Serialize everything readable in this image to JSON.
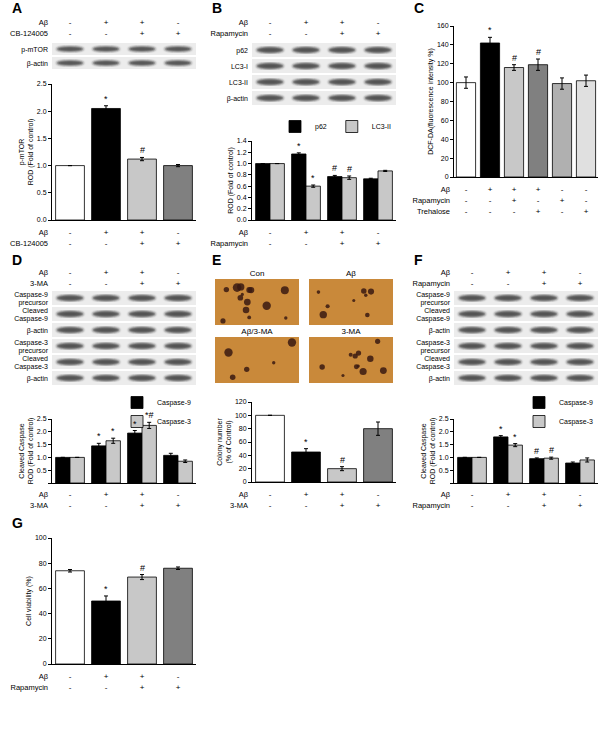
{
  "panels": [
    {
      "label": "A",
      "conditions": [
        {
          "name": "Aβ",
          "signs": [
            "-",
            "+",
            "+",
            "-"
          ]
        },
        {
          "name": "CB-124005",
          "signs": [
            "-",
            "-",
            "+",
            "+"
          ]
        }
      ],
      "blots": [
        "p-mTOR",
        "β-actin"
      ]
    },
    {
      "label": "B",
      "conditions": [
        {
          "name": "Aβ",
          "signs": [
            "-",
            "+",
            "+",
            "-"
          ]
        },
        {
          "name": "Rapamycin",
          "signs": [
            "-",
            "-",
            "+",
            "+"
          ]
        }
      ],
      "blots": [
        "p62",
        "LC3-I",
        "LC3-II",
        "β-actin"
      ]
    },
    {
      "label": "C",
      "conditions": [
        {
          "name": "Aβ",
          "signs": [
            "-",
            "+",
            "+",
            "+",
            "-",
            "-"
          ]
        },
        {
          "name": "Rapamycin",
          "signs": [
            "-",
            "-",
            "+",
            "-",
            "+",
            "-"
          ]
        },
        {
          "name": "Trehalose",
          "signs": [
            "-",
            "-",
            "-",
            "+",
            "-",
            "+"
          ]
        }
      ]
    },
    {
      "label": "D",
      "conditions": [
        {
          "name": "Aβ",
          "signs": [
            "-",
            "+",
            "+",
            "-"
          ]
        },
        {
          "name": "3-MA",
          "signs": [
            "-",
            "-",
            "+",
            "+"
          ]
        }
      ],
      "blots": [
        "Caspase-9\nprecursor",
        "Cleaved\nCaspase-9",
        "β-actin",
        "Caspase-3\nprecursor",
        "Cleaved\nCaspase-3",
        "β-actin"
      ]
    },
    {
      "label": "E",
      "conditions": [
        {
          "name": "Aβ",
          "signs": [
            "-",
            "+",
            "+",
            "-"
          ]
        },
        {
          "name": "3-MA",
          "signs": [
            "-",
            "-",
            "+",
            "+"
          ]
        }
      ],
      "images": [
        "Con",
        "Aβ",
        "Aβ/3-MA",
        "3-MA"
      ]
    },
    {
      "label": "F",
      "conditions": [
        {
          "name": "Aβ",
          "signs": [
            "-",
            "+",
            "+",
            "-"
          ]
        },
        {
          "name": "Rapamycin",
          "signs": [
            "-",
            "-",
            "+",
            "+"
          ]
        }
      ],
      "blots": [
        "Caspase-9\nprecursor",
        "Cleaved\nCaspase-9",
        "β-actin",
        "Caspase-3\nprecursor",
        "Cleaved\nCaspase-3",
        "β-actin"
      ]
    },
    {
      "label": "G",
      "conditions": [
        {
          "name": "Aβ",
          "signs": [
            "-",
            "+",
            "+",
            "-"
          ]
        },
        {
          "name": "Rapamycin",
          "signs": [
            "-",
            "-",
            "+",
            "+"
          ]
        }
      ]
    }
  ],
  "chart_data": [
    {
      "type": "bar",
      "ylabel": "p-mTOR\nROD (Fold of control)",
      "categories": [
        null,
        null,
        null,
        null
      ],
      "values": [
        1.0,
        2.05,
        1.12,
        1.0
      ],
      "errors": [
        0,
        0.05,
        0.03,
        0.02
      ],
      "colors": [
        "#ffffff",
        "#000000",
        "#c8c8c8",
        "#808080"
      ],
      "ylim": [
        0,
        2.5
      ],
      "yticks": [
        {
          "value": 0,
          "label": "0.0"
        },
        0.5,
        {
          "value": 1,
          "label": "1.0"
        },
        1.5,
        {
          "value": 2,
          "label": "2.0"
        },
        2.5
      ],
      "grid": false,
      "tick_labels": "y",
      "annotations": [
        {
          "index": 1,
          "text": "*"
        },
        {
          "index": 2,
          "text": "#"
        }
      ]
    },
    {
      "type": "bar",
      "ylabel": "ROD (Fold of control)",
      "categories": [
        null,
        null,
        null,
        null
      ],
      "series": [
        {
          "name": "p62",
          "color": "#000000",
          "values": [
            1.0,
            1.17,
            0.77,
            0.73
          ],
          "errors": [
            0,
            0.02,
            0.02,
            0.01
          ]
        },
        {
          "name": "LC3-II",
          "color": "#c8c8c8",
          "values": [
            1.0,
            0.6,
            0.75,
            0.87
          ],
          "errors": [
            0,
            0.02,
            0.03,
            0.01
          ]
        }
      ],
      "ylim": [
        0,
        1.4
      ],
      "yticks": [
        {
          "value": 0,
          "label": "0.0"
        },
        0.2,
        0.4,
        0.6,
        0.8,
        {
          "value": 1,
          "label": "1.0"
        },
        1.2,
        1.4
      ],
      "grid": false,
      "tick_labels": "y",
      "legend": "top right",
      "annotations": [
        {
          "index": 1,
          "series": "p62",
          "text": "*"
        },
        {
          "index": 1,
          "series": "LC3-II",
          "text": "*"
        },
        {
          "index": 2,
          "series": "p62",
          "text": "#"
        },
        {
          "index": 2,
          "series": "LC3-II",
          "text": "#"
        }
      ]
    },
    {
      "type": "bar",
      "ylabel": "DCF-DA(fluorescence intensity %)",
      "categories": [
        null,
        null,
        null,
        null,
        null,
        null
      ],
      "values": [
        100,
        142,
        116,
        119,
        99,
        102
      ],
      "errors": [
        6,
        6,
        3,
        6,
        6,
        6
      ],
      "colors": [
        "#ffffff",
        "#000000",
        "#c8c8c8",
        "#808080",
        "#b0b0b0",
        "#e0e0e0"
      ],
      "ylim": [
        0,
        160
      ],
      "yticks": [
        0,
        20,
        40,
        60,
        80,
        100,
        120,
        140,
        160
      ],
      "grid": false,
      "tick_labels": "y",
      "annotations": [
        {
          "index": 1,
          "text": "*"
        },
        {
          "index": 2,
          "text": "#"
        },
        {
          "index": 3,
          "text": "#"
        }
      ]
    },
    {
      "type": "bar",
      "ylabel": "Cleaved Caspase\nROD (Fold of control)",
      "categories": [
        null,
        null,
        null,
        null
      ],
      "series": [
        {
          "name": "Caspase-9",
          "color": "#000000",
          "values": [
            1.0,
            1.45,
            1.95,
            1.08
          ],
          "errors": [
            0,
            0.1,
            0.1,
            0.08
          ]
        },
        {
          "name": "Caspase-3",
          "color": "#c8c8c8",
          "values": [
            1.0,
            1.65,
            2.25,
            0.85
          ],
          "errors": [
            0,
            0.1,
            0.12,
            0.05
          ]
        }
      ],
      "ylim": [
        0,
        2.5
      ],
      "yticks": [
        {
          "value": 0,
          "label": "0.0"
        },
        0.5,
        {
          "value": 1,
          "label": "1.0"
        },
        1.5,
        {
          "value": 2,
          "label": "2.0"
        },
        2.5
      ],
      "grid": false,
      "tick_labels": "y",
      "legend": "top right",
      "annotations": [
        {
          "index": 1,
          "series": "Caspase-9",
          "text": "*"
        },
        {
          "index": 1,
          "series": "Caspase-3",
          "text": "*"
        },
        {
          "index": 2,
          "series": "Caspase-9",
          "text": "*"
        },
        {
          "index": 2,
          "series": "Caspase-3",
          "text": "*#"
        }
      ]
    },
    {
      "type": "bar",
      "ylabel": "Colony number\n(% of Control)",
      "categories": [
        null,
        null,
        null,
        null
      ],
      "values": [
        100,
        45,
        20,
        80
      ],
      "errors": [
        0,
        5,
        3,
        10
      ],
      "colors": [
        "#ffffff",
        "#000000",
        "#c8c8c8",
        "#808080"
      ],
      "ylim": [
        0,
        120
      ],
      "yticks": [
        0,
        20,
        40,
        60,
        80,
        100,
        120
      ],
      "grid": false,
      "tick_labels": "y",
      "annotations": [
        {
          "index": 1,
          "text": "*"
        },
        {
          "index": 2,
          "text": "#"
        }
      ]
    },
    {
      "type": "bar",
      "ylabel": "Cleaved Caspase\nROD (Fold of control)",
      "categories": [
        null,
        null,
        null,
        null
      ],
      "series": [
        {
          "name": "Caspase-9",
          "color": "#000000",
          "values": [
            1.0,
            1.8,
            0.95,
            0.78
          ],
          "errors": [
            0,
            0.05,
            0.03,
            0.04
          ]
        },
        {
          "name": "Caspase-3",
          "color": "#c8c8c8",
          "values": [
            1.0,
            1.48,
            0.97,
            0.9
          ],
          "errors": [
            0,
            0.06,
            0.04,
            0.08
          ]
        }
      ],
      "ylim": [
        0,
        2.5
      ],
      "yticks": [
        {
          "value": 0,
          "label": "0.0"
        },
        0.5,
        {
          "value": 1,
          "label": "1.0"
        },
        1.5,
        {
          "value": 2,
          "label": "2.0"
        },
        2.5
      ],
      "grid": false,
      "tick_labels": "y",
      "legend": "top right",
      "annotations": [
        {
          "index": 1,
          "series": "Caspase-9",
          "text": "*"
        },
        {
          "index": 1,
          "series": "Caspase-3",
          "text": "*"
        },
        {
          "index": 2,
          "series": "Caspase-9",
          "text": "#"
        },
        {
          "index": 2,
          "series": "Caspase-3",
          "text": "#"
        }
      ]
    },
    {
      "type": "bar",
      "ylabel": "Cell viability (%)",
      "categories": [
        null,
        null,
        null,
        null
      ],
      "values": [
        74,
        50,
        69,
        76
      ],
      "errors": [
        1,
        4,
        2,
        1
      ],
      "colors": [
        "#ffffff",
        "#000000",
        "#c8c8c8",
        "#808080"
      ],
      "ylim": [
        0,
        100
      ],
      "yticks": [
        0,
        20,
        40,
        60,
        80,
        100
      ],
      "grid": false,
      "tick_labels": "y",
      "annotations": [
        {
          "index": 1,
          "text": "*"
        },
        {
          "index": 2,
          "text": "#"
        }
      ]
    }
  ]
}
